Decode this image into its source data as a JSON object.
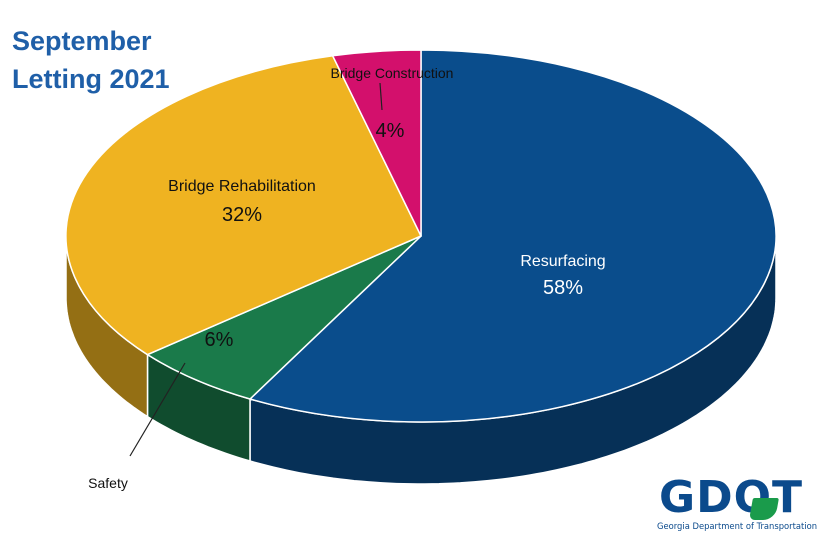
{
  "title_lines": [
    "September",
    "Letting 2021"
  ],
  "chart_data": {
    "type": "pie",
    "title": "September Letting 2021",
    "style": "3d",
    "slices": [
      {
        "name": "Resurfacing",
        "value": 58,
        "label": "58%",
        "color": "#0a4d8c"
      },
      {
        "name": "Safety",
        "value": 6,
        "label": "6%",
        "color": "#1a7a4a"
      },
      {
        "name": "Bridge Rehabilitation",
        "value": 32,
        "label": "32%",
        "color": "#efb321"
      },
      {
        "name": "Bridge Construction",
        "value": 4,
        "label": "4%",
        "color": "#d3106c"
      }
    ]
  },
  "logo": {
    "text": "GDOT",
    "subtitle": "Georgia Department of Transportation",
    "color": "#0b4a8c",
    "accent": "#1a9b4b"
  }
}
